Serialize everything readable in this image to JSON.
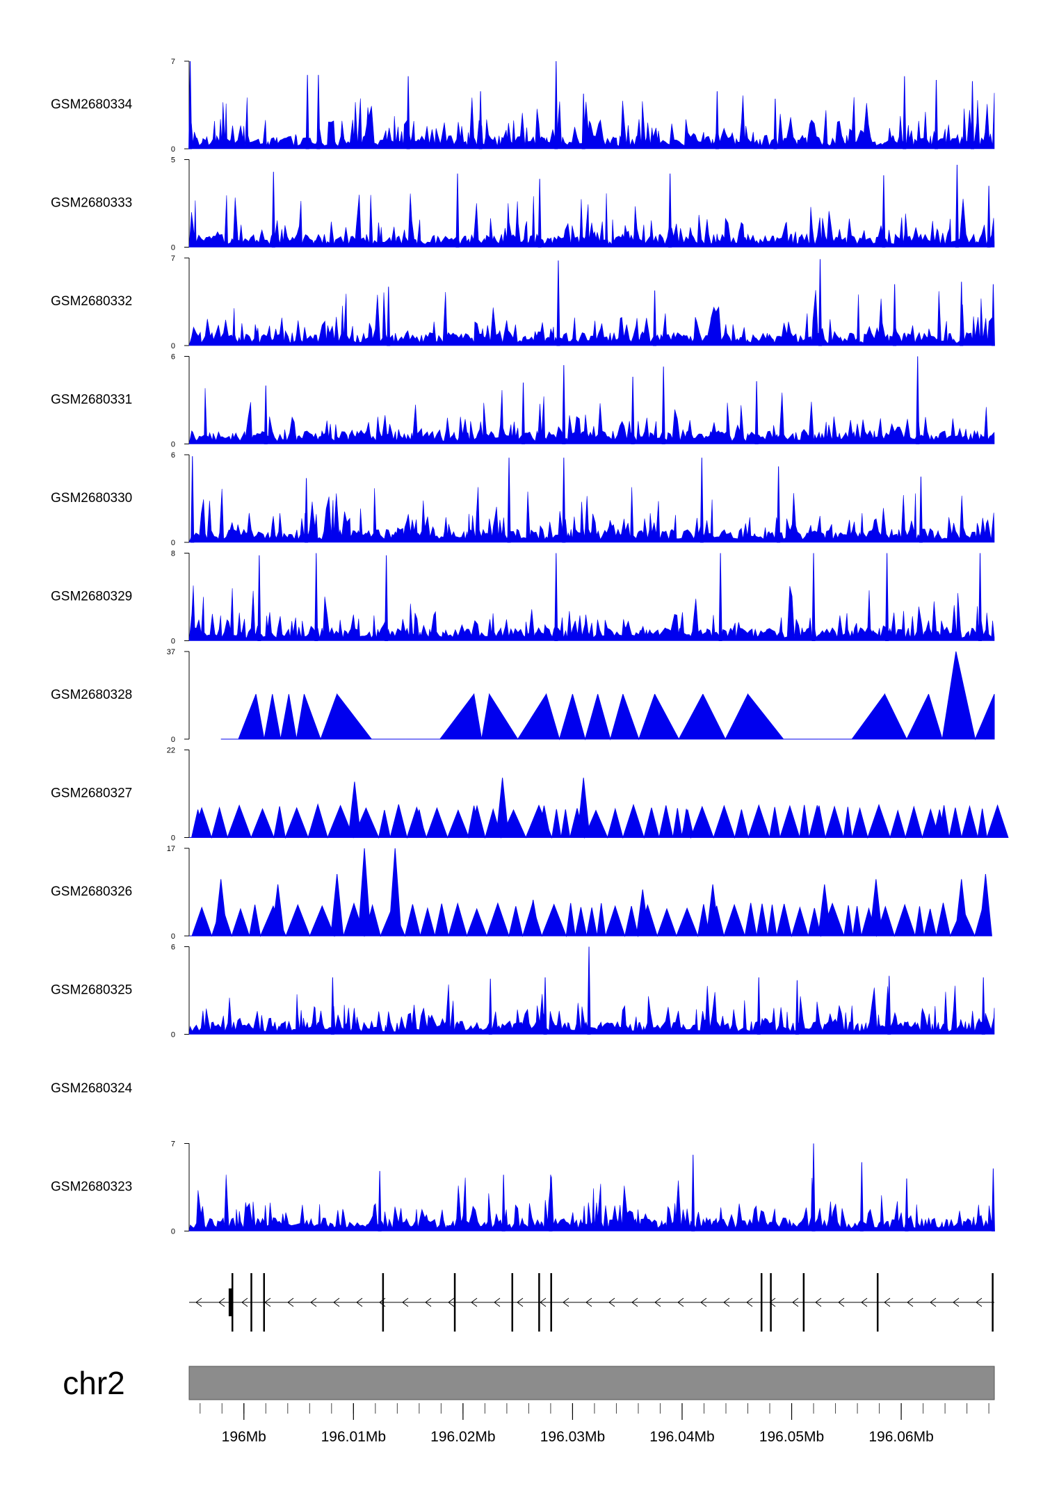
{
  "chart_data": {
    "type": "area",
    "title": "",
    "chromosome": "chr2",
    "xlim_mb": [
      195.995,
      196.0685
    ],
    "series_color": "#0000ee",
    "tracks": [
      {
        "name": "GSM2680334",
        "ymin": 0,
        "ymax": 7,
        "style": "dense",
        "peaks": [
          [
            195.9951,
            7
          ],
          [
            196.0058,
            5.9
          ],
          [
            196.0068,
            5.9
          ],
          [
            196.015,
            5.8
          ],
          [
            196.0216,
            4.6
          ],
          [
            196.0285,
            7
          ],
          [
            196.031,
            4.4
          ],
          [
            196.0432,
            4.6
          ],
          [
            196.0485,
            4.0
          ],
          [
            196.0603,
            5.8
          ],
          [
            196.0632,
            5.5
          ],
          [
            196.0665,
            5.4
          ]
        ]
      },
      {
        "name": "GSM2680333",
        "ymin": 0,
        "ymax": 5,
        "style": "dense",
        "peaks": [
          [
            196.0027,
            4.3
          ],
          [
            196.0195,
            4.2
          ],
          [
            196.027,
            3.9
          ],
          [
            196.0389,
            4.2
          ],
          [
            196.0584,
            4.1
          ],
          [
            196.0651,
            4.7
          ],
          [
            196.068,
            3.5
          ]
        ]
      },
      {
        "name": "GSM2680332",
        "ymin": 0,
        "ymax": 7,
        "style": "dense",
        "peaks": [
          [
            196.0132,
            4.7
          ],
          [
            196.0287,
            6.8
          ],
          [
            196.0375,
            4.4
          ],
          [
            196.0526,
            6.9
          ],
          [
            196.0594,
            4.9
          ],
          [
            196.0655,
            5.1
          ],
          [
            196.0684,
            4.9
          ]
        ]
      },
      {
        "name": "GSM2680331",
        "ymin": 0,
        "ymax": 6,
        "style": "dense",
        "peaks": [
          [
            196.002,
            4.0
          ],
          [
            196.0255,
            4.2
          ],
          [
            196.0292,
            5.4
          ],
          [
            196.0355,
            4.6
          ],
          [
            196.0383,
            5.3
          ],
          [
            196.0468,
            4.3
          ],
          [
            196.0615,
            6.0
          ]
        ]
      },
      {
        "name": "GSM2680330",
        "ymin": 0,
        "ymax": 6,
        "style": "dense",
        "peaks": [
          [
            195.9953,
            5.9
          ],
          [
            196.0057,
            4.4
          ],
          [
            196.0242,
            5.8
          ],
          [
            196.0292,
            5.8
          ],
          [
            196.0418,
            5.8
          ],
          [
            196.0488,
            5.2
          ],
          [
            196.0618,
            4.5
          ]
        ]
      },
      {
        "name": "GSM2680329",
        "ymin": 0,
        "ymax": 8,
        "style": "dense",
        "peaks": [
          [
            196.0014,
            7.8
          ],
          [
            196.0066,
            8.0
          ],
          [
            196.013,
            7.8
          ],
          [
            196.0285,
            8.0
          ],
          [
            196.0435,
            8.0
          ],
          [
            196.052,
            8.0
          ],
          [
            196.0587,
            8.0
          ],
          [
            196.0672,
            8.0
          ]
        ]
      },
      {
        "name": "GSM2680328",
        "ymin": 0,
        "ymax": 37,
        "style": "sparse",
        "peaks": [
          [
            195.9979,
            0
          ],
          [
            196.0011,
            19
          ],
          [
            196.0026,
            19
          ],
          [
            196.0041,
            19
          ],
          [
            196.0055,
            19
          ],
          [
            196.0085,
            19
          ],
          [
            196.0148,
            0
          ],
          [
            196.021,
            19
          ],
          [
            196.0224,
            19
          ],
          [
            196.0276,
            19
          ],
          [
            196.03,
            19
          ],
          [
            196.0323,
            19
          ],
          [
            196.0346,
            19
          ],
          [
            196.0375,
            19
          ],
          [
            196.0419,
            19
          ],
          [
            196.046,
            19
          ],
          [
            196.0525,
            0
          ],
          [
            196.0585,
            19
          ],
          [
            196.0625,
            19
          ],
          [
            196.065,
            37
          ],
          [
            196.0685,
            19
          ]
        ]
      },
      {
        "name": "GSM2680327",
        "ymin": 0,
        "ymax": 22,
        "style": "sparse",
        "peaks": [
          [
            195.9958,
            7
          ],
          [
            196.0101,
            14
          ],
          [
            196.016,
            7
          ],
          [
            196.021,
            8
          ],
          [
            196.0236,
            15
          ],
          [
            196.0274,
            8
          ],
          [
            196.031,
            15
          ],
          [
            196.0405,
            7
          ],
          [
            196.0525,
            8
          ],
          [
            196.0635,
            7
          ]
        ]
      },
      {
        "name": "GSM2680326",
        "ymin": 0,
        "ymax": 17,
        "style": "sparse",
        "peaks": [
          [
            195.9979,
            11
          ],
          [
            196.0031,
            10
          ],
          [
            196.0085,
            12
          ],
          [
            196.011,
            17
          ],
          [
            196.0138,
            17
          ],
          [
            196.0264,
            7
          ],
          [
            196.0364,
            9
          ],
          [
            196.0428,
            10
          ],
          [
            196.053,
            10
          ],
          [
            196.0577,
            11
          ],
          [
            196.0655,
            11
          ],
          [
            196.0677,
            12
          ]
        ]
      },
      {
        "name": "GSM2680325",
        "ymin": 0,
        "ymax": 6,
        "style": "dense",
        "peaks": [
          [
            196.0081,
            3.9
          ],
          [
            196.0225,
            3.8
          ],
          [
            196.0275,
            3.9
          ],
          [
            196.0315,
            6.0
          ],
          [
            196.047,
            3.9
          ],
          [
            196.0505,
            3.7
          ],
          [
            196.0589,
            4.0
          ],
          [
            196.0675,
            3.9
          ]
        ]
      },
      {
        "name": "GSM2680324",
        "ymin": null,
        "ymax": null,
        "style": "empty",
        "peaks": []
      },
      {
        "name": "GSM2680323",
        "ymin": 0,
        "ymax": 7,
        "style": "dense",
        "peaks": [
          [
            196.0124,
            4.8
          ],
          [
            196.0237,
            4.5
          ],
          [
            196.028,
            4.5
          ],
          [
            196.041,
            6.1
          ],
          [
            196.052,
            7.0
          ],
          [
            196.0564,
            5.5
          ],
          [
            196.0605,
            4.2
          ],
          [
            196.0684,
            5.0
          ]
        ]
      }
    ],
    "gene_model": {
      "strand": "-",
      "exons_mb": [
        195.99895,
        196.00068,
        196.00184,
        196.0127,
        196.01925,
        196.0245,
        196.02695,
        196.02805,
        196.04725,
        196.0481,
        196.0511,
        196.05785,
        196.06835
      ],
      "thick_exon_mb": 195.9988
    },
    "x_axis": {
      "ticks_mb": [
        196.0,
        196.01,
        196.02,
        196.03,
        196.04,
        196.05,
        196.06
      ],
      "tick_labels": [
        "196Mb",
        "196.01Mb",
        "196.02Mb",
        "196.03Mb",
        "196.04Mb",
        "196.05Mb",
        "196.06Mb"
      ],
      "minor_step_mb": 0.002
    },
    "grid": false,
    "legend": "none"
  }
}
